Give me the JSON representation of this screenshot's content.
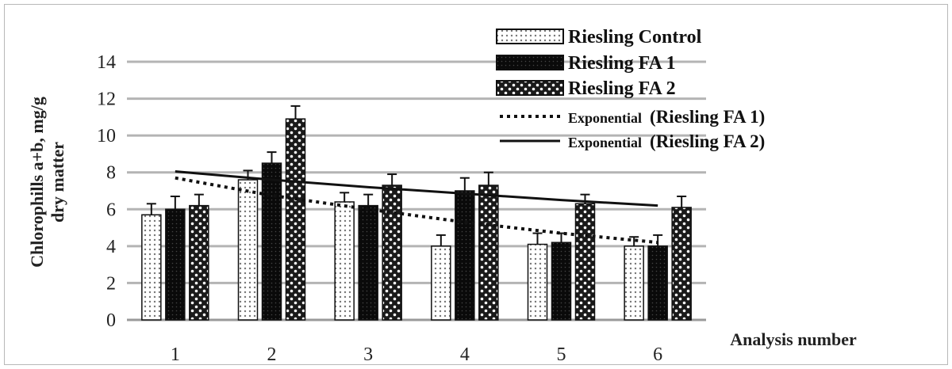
{
  "chart_data": {
    "type": "bar",
    "title": "",
    "xlabel": "Analysis number",
    "ylabel_line1": "Chlorophills a+b, mg/g",
    "ylabel_line2": "dry matter",
    "categories": [
      "1",
      "2",
      "3",
      "4",
      "5",
      "6"
    ],
    "ylim": [
      0,
      14
    ],
    "yticks": [
      "0",
      "2",
      "4",
      "6",
      "8",
      "10",
      "12",
      "14"
    ],
    "grid": true,
    "legend_position": "top-right",
    "series": [
      {
        "name": "Riesling Control",
        "values": [
          5.7,
          7.6,
          6.4,
          4.0,
          4.1,
          4.0
        ],
        "errors": [
          0.6,
          0.5,
          0.5,
          0.6,
          0.6,
          0.5
        ],
        "pattern": "light-dotted"
      },
      {
        "name": "Riesling FA 1",
        "values": [
          6.0,
          8.5,
          6.2,
          7.0,
          4.2,
          4.0
        ],
        "errors": [
          0.7,
          0.6,
          0.6,
          0.7,
          0.5,
          0.6
        ],
        "pattern": "dark"
      },
      {
        "name": "Riesling FA 2",
        "values": [
          6.2,
          10.9,
          7.3,
          7.3,
          6.3,
          6.1
        ],
        "errors": [
          0.6,
          0.7,
          0.6,
          0.7,
          0.5,
          0.6
        ],
        "pattern": "checker"
      }
    ],
    "trendlines": [
      {
        "name_prefix": "Exponential",
        "name_suffix": "(Riesling FA 1)",
        "style": "dotted",
        "values": [
          7.7,
          6.75,
          6.0,
          5.3,
          4.7,
          4.2
        ]
      },
      {
        "name_prefix": "Exponential",
        "name_suffix": "(Riesling FA 2)",
        "style": "solid",
        "values": [
          8.05,
          7.6,
          7.2,
          6.85,
          6.5,
          6.2
        ]
      }
    ]
  }
}
